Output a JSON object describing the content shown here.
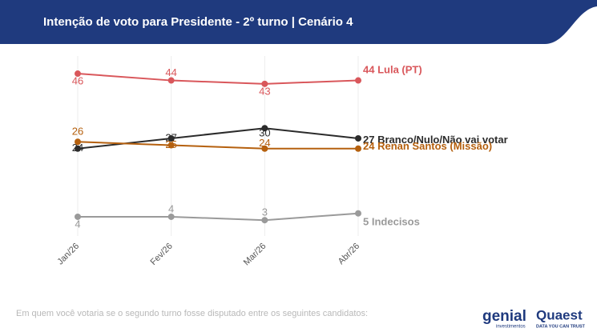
{
  "header": {
    "title": "Intenção de voto para Presidente - 2º turno | Cenário 4"
  },
  "chart_data": {
    "type": "line",
    "categories": [
      "Jan/26",
      "Fev/26",
      "Mar/26",
      "Abr/26"
    ],
    "series": [
      {
        "name": "Lula (PT)",
        "color": "#d9575b",
        "values": [
          46,
          44,
          43,
          44
        ]
      },
      {
        "name": "Branco/Nulo/Não vai votar",
        "color": "#2b2b2b",
        "values": [
          24,
          27,
          30,
          27
        ]
      },
      {
        "name": "Renan Santos (Missão)",
        "color": "#b5600e",
        "values": [
          26,
          25,
          24,
          24
        ]
      },
      {
        "name": "Indecisos",
        "color": "#9a9a9a",
        "values": [
          4,
          4,
          3,
          5
        ]
      }
    ],
    "ylim": [
      0,
      50
    ],
    "grid": true
  },
  "footer": {
    "note": "Em quem você votaria se o segundo turno fosse disputado entre os seguintes candidatos:",
    "logo1": "genial",
    "logo1_sub": "investimentos",
    "logo2": "Quaest",
    "logo2_sub": "DATA YOU CAN TRUST"
  }
}
